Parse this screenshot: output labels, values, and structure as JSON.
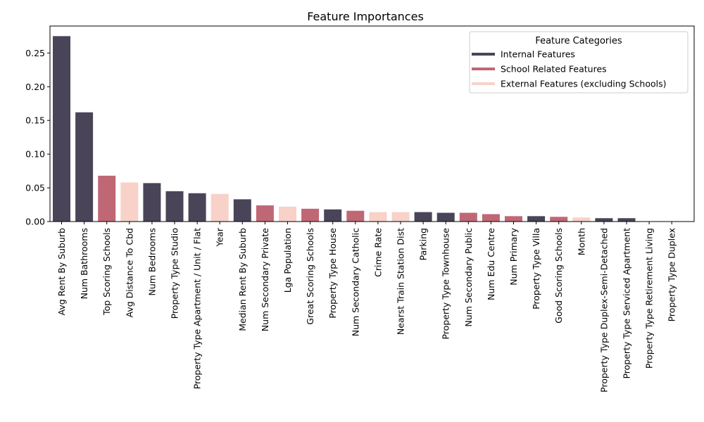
{
  "chart_data": {
    "type": "bar",
    "title": "Feature Importances",
    "xlabel": "",
    "ylabel": "",
    "ylim": [
      0,
      0.29
    ],
    "yticks": [
      "0.00",
      "0.05",
      "0.10",
      "0.15",
      "0.20",
      "0.25"
    ],
    "grid": false,
    "legend": {
      "title": "Feature Categories",
      "position": "top-right",
      "entries": [
        {
          "key": "internal",
          "label": "Internal Features",
          "color": "#4a4458"
        },
        {
          "key": "school",
          "label": "School Related Features",
          "color": "#c06775"
        },
        {
          "key": "external",
          "label": "External Features (excluding Schools)",
          "color": "#f8d1c8"
        }
      ]
    },
    "categories": [
      "Avg Rent By Suburb",
      "Num Bathrooms",
      "Top Scoring Schools",
      "Avg Distance To Cbd",
      "Num Bedrooms",
      "Property Type Studio",
      "Property Type Apartment / Unit / Flat",
      "Year",
      "Median Rent By Suburb",
      "Num Secondary Private",
      "Lga Population",
      "Great Scoring Schools",
      "Property Type House",
      "Num Secondary Catholic",
      "Crime Rate",
      "Nearst Train Station Dist",
      "Parking",
      "Property Type Townhouse",
      "Num Secondary Public",
      "Num Edu Centre",
      "Num Primary",
      "Property Type Villa",
      "Good Scoring Schools",
      "Month",
      "Property Type Duplex-Semi-Detached",
      "Property Type Serviced Apartment",
      "Property Type Retirement Living",
      "Property Type Duplex"
    ],
    "values": [
      0.275,
      0.162,
      0.068,
      0.058,
      0.057,
      0.045,
      0.042,
      0.041,
      0.033,
      0.024,
      0.022,
      0.019,
      0.018,
      0.016,
      0.014,
      0.014,
      0.014,
      0.013,
      0.013,
      0.011,
      0.008,
      0.008,
      0.007,
      0.006,
      0.005,
      0.005,
      0.0,
      0.0
    ],
    "groups": [
      "internal",
      "internal",
      "school",
      "external",
      "internal",
      "internal",
      "internal",
      "external",
      "internal",
      "school",
      "external",
      "school",
      "internal",
      "school",
      "external",
      "external",
      "internal",
      "internal",
      "school",
      "school",
      "school",
      "internal",
      "school",
      "external",
      "internal",
      "internal",
      "internal",
      "internal"
    ]
  }
}
